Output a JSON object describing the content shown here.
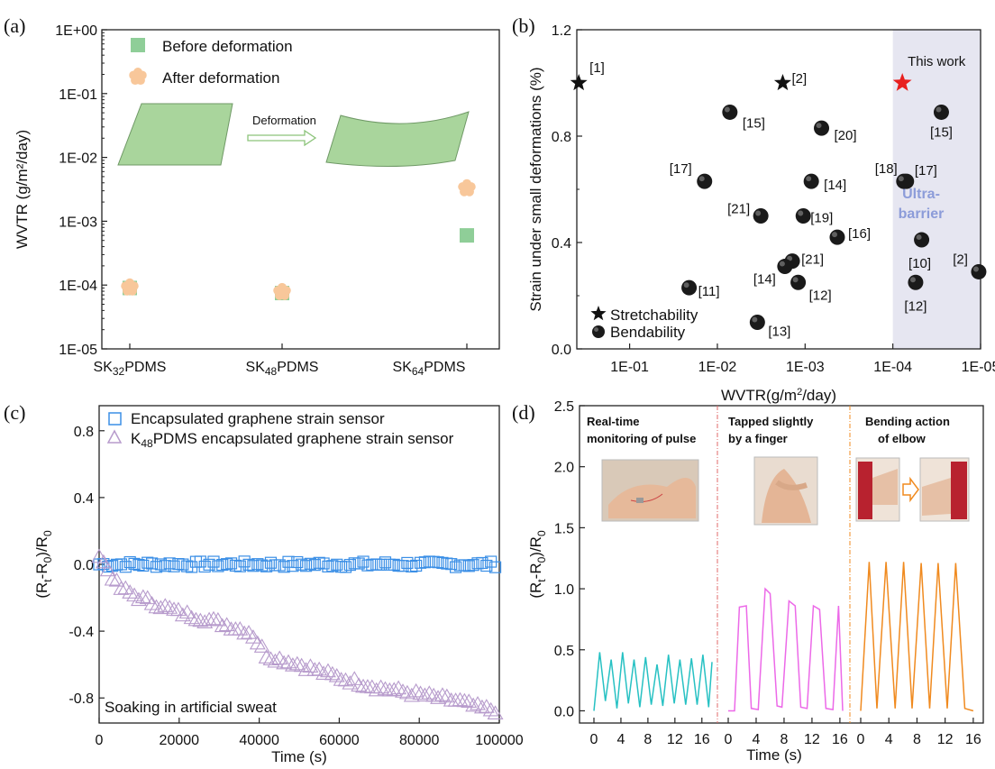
{
  "panels": {
    "a": {
      "label": "(a)",
      "chart_data": {
        "type": "scatter",
        "ylabel": "WVTR (g/m²/day)",
        "yscale": "log",
        "ylim": [
          1e-05,
          1
        ],
        "yticks": [
          "1E-05",
          "1E-04",
          "1E-03",
          "1E-02",
          "1E-01",
          "1E+00"
        ],
        "categories": [
          "SK32PDMS",
          "SK48PDMS",
          "SK64PDMS"
        ],
        "category_labels": [
          {
            "pre": "SK",
            "sub": "32",
            "post": "PDMS"
          },
          {
            "pre": "SK",
            "sub": "48",
            "post": "PDMS"
          },
          {
            "pre": "SK",
            "sub": "64",
            "post": "PDMS"
          }
        ],
        "series": [
          {
            "name": "Before deformation",
            "marker": "square",
            "color": "#8fce98",
            "values": [
              9e-05,
              7.5e-05,
              0.0006
            ]
          },
          {
            "name": "After deformation",
            "marker": "flower",
            "color": "#f8c79a",
            "values": [
              9.2e-05,
              7.8e-05,
              0.0033
            ]
          }
        ],
        "annotation": "Deformation"
      }
    },
    "b": {
      "label": "(b)",
      "chart_data": {
        "type": "scatter",
        "xlabel": "WVTR(g/m²/day)",
        "ylabel": "Strain under small deformations (%)",
        "xscale": "log",
        "xreversed": true,
        "xlim": [
          0.4,
          1e-05
        ],
        "ylim": [
          0,
          1.2
        ],
        "xticks": [
          "1E-01",
          "1E-02",
          "1E-03",
          "1E-04",
          "1E-05"
        ],
        "yticks": [
          "0.0",
          "0.4",
          "0.8",
          "1.2"
        ],
        "shaded_region_label": "Ultra-barrier",
        "shaded_from_x": 0.0001,
        "highlight_label": "This work",
        "series": [
          {
            "name": "Stretchability",
            "marker": "star",
            "points": [
              {
                "x": 0.38,
                "y": 1.0,
                "label": "[1]"
              },
              {
                "x": 0.0018,
                "y": 1.0,
                "label": "[2]"
              }
            ]
          },
          {
            "name": "Bendability",
            "marker": "sphere",
            "points": [
              {
                "x": 0.0072,
                "y": 0.89,
                "label": "[15]"
              },
              {
                "x": 0.00065,
                "y": 0.83,
                "label": "[20]"
              },
              {
                "x": 0.014,
                "y": 0.63,
                "label": "[17]"
              },
              {
                "x": 0.00085,
                "y": 0.63,
                "label": "[14]"
              },
              {
                "x": 7e-05,
                "y": 0.63,
                "label": "[18]"
              },
              {
                "x": 0.0032,
                "y": 0.5,
                "label": "[21]"
              },
              {
                "x": 0.00105,
                "y": 0.5,
                "label": "[19]"
              },
              {
                "x": 0.00043,
                "y": 0.42,
                "label": "[16]"
              },
              {
                "x": 0.0014,
                "y": 0.33,
                "label": "[21]"
              },
              {
                "x": 0.0017,
                "y": 0.31,
                "label": "[14]"
              },
              {
                "x": 0.0012,
                "y": 0.25,
                "label": "[12]"
              },
              {
                "x": 0.021,
                "y": 0.23,
                "label": "[11]"
              },
              {
                "x": 0.0035,
                "y": 0.1,
                "label": "[13]"
              },
              {
                "x": 2.8e-05,
                "y": 0.89,
                "label": "[15]"
              },
              {
                "x": 7.5e-05,
                "y": 0.63,
                "label": "[17]"
              },
              {
                "x": 4.7e-05,
                "y": 0.41,
                "label": "[10]"
              },
              {
                "x": 5.5e-05,
                "y": 0.25,
                "label": "[12]"
              },
              {
                "x": 1.05e-05,
                "y": 0.29,
                "label": "[2]"
              }
            ]
          },
          {
            "name": "This work",
            "marker": "star",
            "color": "#e8201f",
            "points": [
              {
                "x": 7.8e-05,
                "y": 1.0,
                "label": "This work"
              }
            ]
          }
        ]
      }
    },
    "c": {
      "label": "(c)",
      "chart_data": {
        "type": "line",
        "xlabel": "Time (s)",
        "ylabel": "(Rt-R0)/R0",
        "xlim": [
          0,
          100000
        ],
        "ylim": [
          -0.95,
          0.95
        ],
        "xticks": [
          "0",
          "20000",
          "40000",
          "60000",
          "80000",
          "100000"
        ],
        "yticks": [
          "-0.8",
          "-0.4",
          "0.0",
          "0.4",
          "0.8"
        ],
        "annotation": "Soaking in artificial sweat",
        "series": [
          {
            "name": "Encapsulated graphene strain sensor",
            "marker": "open-square",
            "color": "#3b8fe6",
            "x": [
              0,
              20000,
              40000,
              60000,
              80000,
              100000
            ],
            "values": [
              0.0,
              0.0,
              0.0,
              0.0,
              0.0,
              0.0
            ]
          },
          {
            "name": "K48PDMS encapsulated graphene strain sensor",
            "marker": "open-triangle",
            "color": "#b79bcc",
            "x": [
              0,
              5000,
              10000,
              20000,
              30000,
              38000,
              42000,
              50000,
              60000,
              70000,
              80000,
              90000,
              95000,
              100000
            ],
            "values": [
              0.05,
              -0.14,
              -0.2,
              -0.29,
              -0.35,
              -0.41,
              -0.55,
              -0.6,
              -0.68,
              -0.74,
              -0.78,
              -0.82,
              -0.86,
              -0.88
            ]
          }
        ]
      }
    },
    "d": {
      "label": "(d)",
      "chart_data": {
        "type": "line",
        "xlabel": "Time (s)",
        "ylabel": "(Rt-R0)/R0",
        "ylim": [
          -0.1,
          2.5
        ],
        "yticks": [
          "0.0",
          "0.5",
          "1.0",
          "1.5",
          "2.0",
          "2.5"
        ],
        "segments": [
          {
            "title": [
              "Real-time",
              "monitoring of pulse"
            ],
            "color": "#27c1c3",
            "xlim": [
              -0.5,
              18
            ],
            "xticks": [
              "0",
              "4",
              "8",
              "12",
              "16"
            ],
            "x": [
              0.0,
              0.85,
              1.7,
              2.55,
              3.4,
              4.25,
              5.1,
              5.95,
              6.8,
              7.65,
              8.5,
              9.35,
              10.2,
              11.05,
              11.9,
              12.75,
              13.6,
              14.45,
              15.3,
              16.15,
              17.0,
              17.5
            ],
            "values": [
              0.0,
              0.48,
              0.08,
              0.42,
              0.02,
              0.48,
              0.06,
              0.42,
              0.03,
              0.44,
              0.05,
              0.38,
              0.04,
              0.46,
              0.06,
              0.42,
              0.05,
              0.43,
              0.05,
              0.46,
              0.03,
              0.4
            ]
          },
          {
            "title": [
              "Tapped slightly",
              "by a finger"
            ],
            "color": "#ec69e8",
            "xlim": [
              -0.5,
              17
            ],
            "xticks": [
              "0",
              "4",
              "8",
              "12",
              "16"
            ],
            "x": [
              0.0,
              0.9,
              1.6,
              2.6,
              3.3,
              4.3,
              5.3,
              6.0,
              7.0,
              7.7,
              8.7,
              9.6,
              10.4,
              11.3,
              12.2,
              13.1,
              14.0,
              15.0,
              15.8,
              16.4
            ],
            "values": [
              0.0,
              0.0,
              0.85,
              0.86,
              0.02,
              0.01,
              1.0,
              0.96,
              0.04,
              0.03,
              0.9,
              0.86,
              0.03,
              0.02,
              0.86,
              0.83,
              0.02,
              0.01,
              0.86,
              0.0
            ]
          },
          {
            "title": [
              "Bending action",
              "of elbow"
            ],
            "color": "#f08a1f",
            "xlim": [
              -0.5,
              16.5
            ],
            "xticks": [
              "0",
              "4",
              "8",
              "12",
              "16"
            ],
            "x": [
              0.0,
              1.2,
              2.3,
              3.6,
              4.9,
              6.1,
              7.3,
              8.6,
              9.8,
              11.0,
              12.3,
              13.5,
              14.8,
              16.0
            ],
            "values": [
              0.0,
              1.22,
              0.02,
              1.22,
              0.02,
              1.22,
              0.02,
              1.21,
              0.02,
              1.21,
              0.02,
              1.21,
              0.02,
              0.0
            ]
          }
        ]
      }
    }
  },
  "colors": {
    "green_sheet": "#a9d59c",
    "highlight_bg": "#e6e6f1",
    "ultra_text": "#8c9cd9",
    "divider": "#e06a6a"
  }
}
